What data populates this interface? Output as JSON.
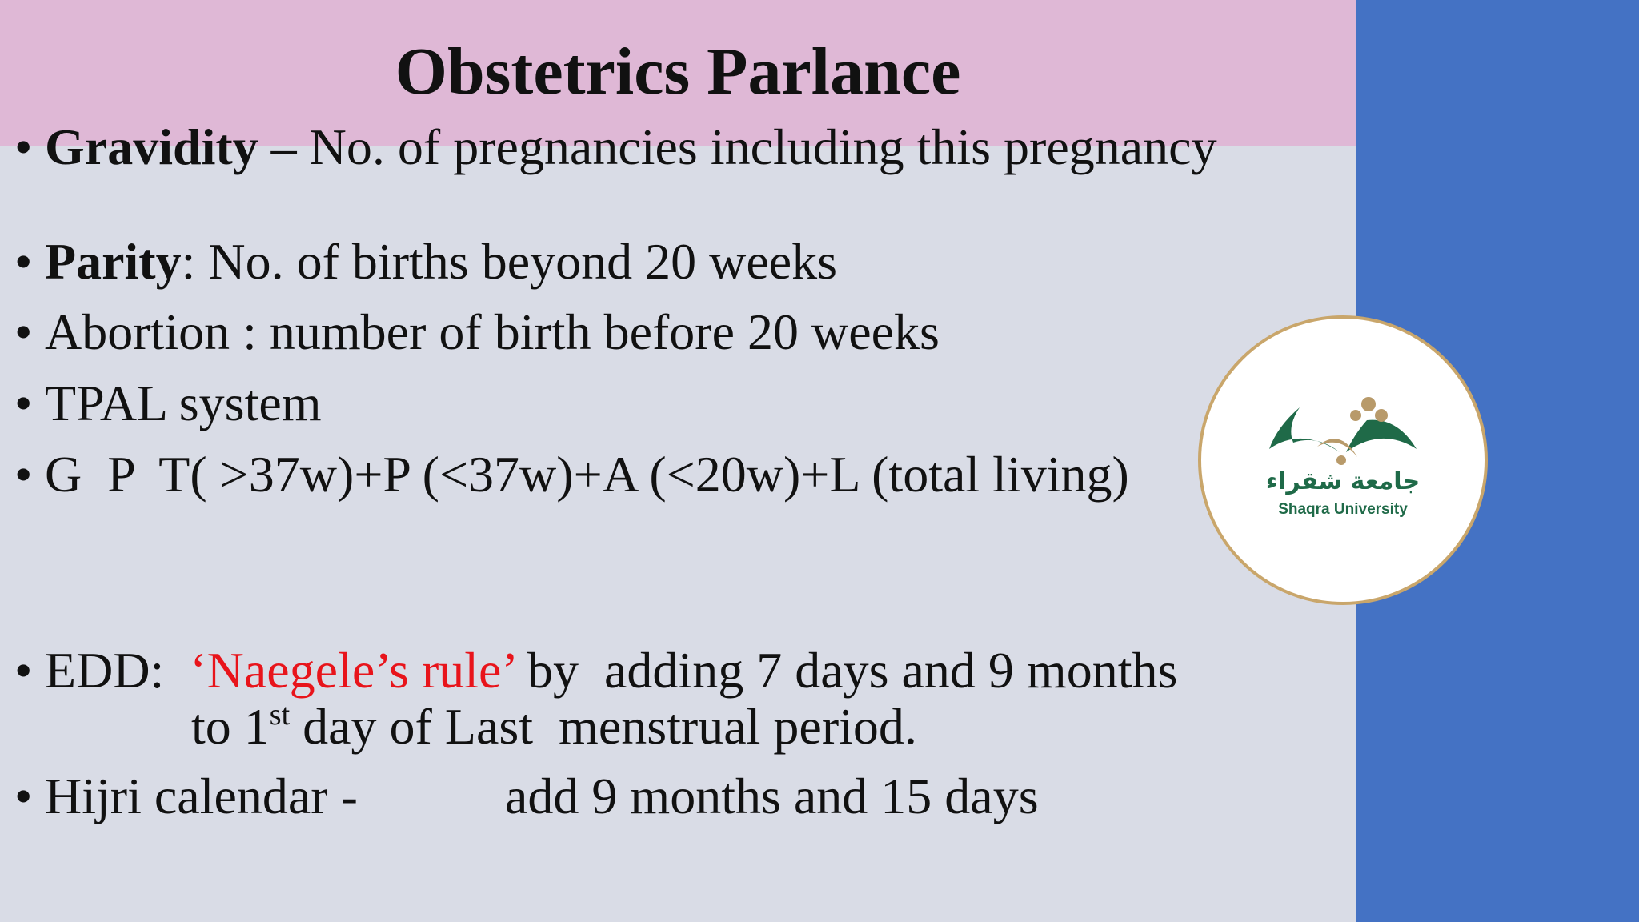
{
  "title": "Obstetrics Parlance",
  "bullets": [
    {
      "term": "Gravidity",
      "text": "– No. of pregnancies including this pregnancy"
    },
    {
      "term": "Parity",
      "text": ": No. of births beyond 20 weeks"
    },
    {
      "text": "Abortion : number of birth before 20 weeks"
    },
    {
      "text": "TPAL system"
    },
    {
      "text": "G  P  T( >37w)+P (<37w)+A (<20w)+L (total living)"
    },
    {
      "prefix": "EDD:",
      "highlight": "‘Naegele’s rule’",
      "text": "by  adding 7 days and 9 months",
      "line2_start": "to 1",
      "line2_sup": "st",
      "line2_end": "day of Last  menstrual period."
    },
    {
      "text": "Hijri calendar -",
      "detail": "add 9 months and 15 days"
    }
  ],
  "logo": {
    "arabic": "جامعة شقراء",
    "english": "Shaqra University"
  }
}
